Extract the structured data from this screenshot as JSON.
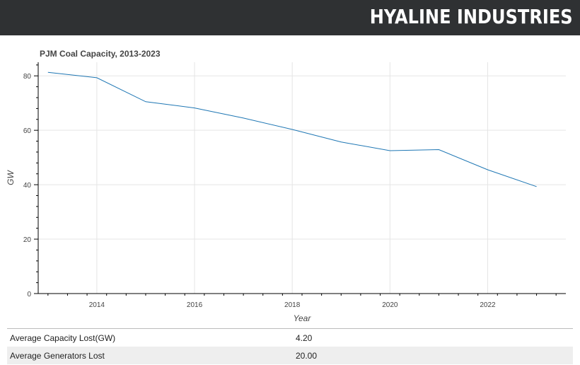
{
  "header": {
    "brand": "HYALINE INDUSTRIES"
  },
  "chart_data": {
    "type": "line",
    "title": "PJM Coal Capacity, 2013-2023",
    "xlabel": "Year",
    "ylabel": "GW",
    "xlim": [
      2012.8,
      2023.6
    ],
    "ylim": [
      0,
      85
    ],
    "xticks": [
      2014,
      2016,
      2018,
      2020,
      2022
    ],
    "yticks": [
      0,
      20,
      40,
      60,
      80
    ],
    "grid": true,
    "legend": "none",
    "color": "#1f77b4",
    "x": [
      2013,
      2014,
      2015,
      2016,
      2017,
      2018,
      2019,
      2020,
      2021,
      2022,
      2023
    ],
    "values": [
      81.3,
      79.3,
      70.5,
      68.2,
      64.5,
      60.3,
      55.7,
      52.5,
      52.9,
      45.5,
      39.3
    ]
  },
  "stats": [
    {
      "label": "Average Capacity Lost(GW)",
      "value": "4.20"
    },
    {
      "label": "Average Generators Lost",
      "value": "20.00"
    }
  ]
}
